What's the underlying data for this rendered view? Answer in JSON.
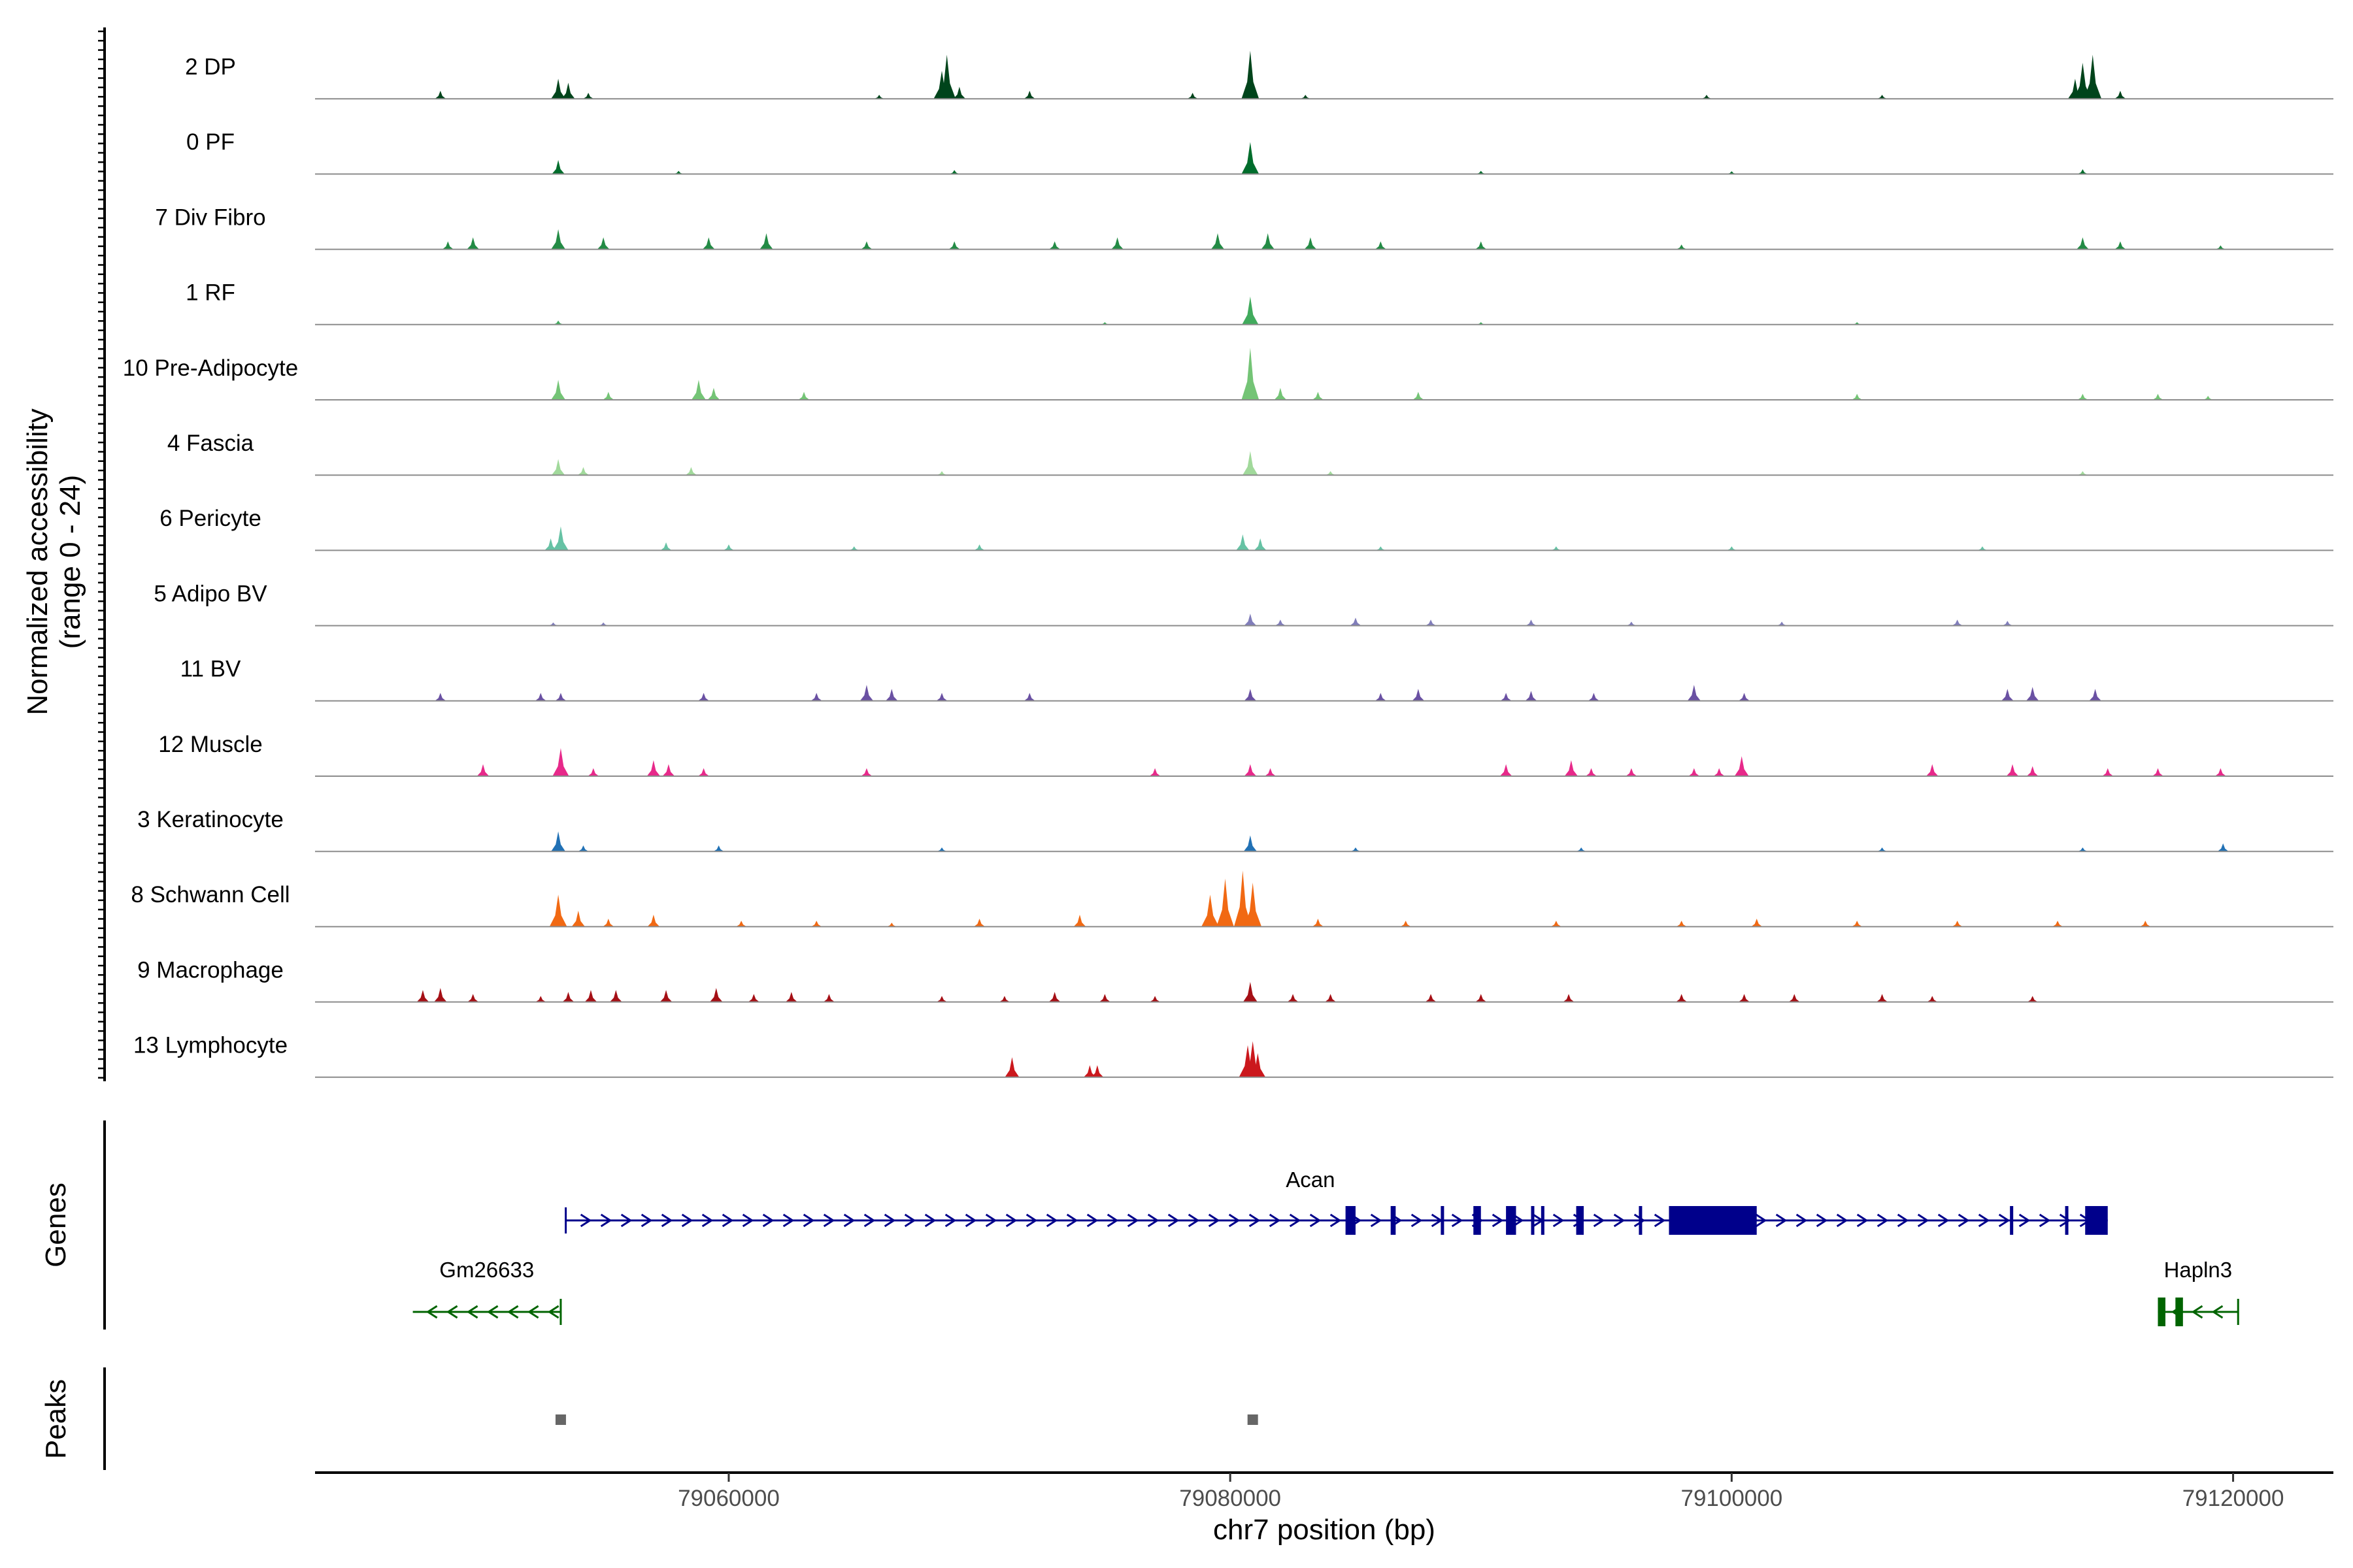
{
  "chart_data": {
    "type": "area",
    "chromosome": "chr7",
    "xlabel": "chr7 position (bp)",
    "ylabel": "Normalized accessibility",
    "ylabel_range": "(range 0 - 24)",
    "ylim": [
      0,
      24
    ],
    "xlim": [
      79043500,
      79124000
    ],
    "x_ticks": [
      79060000,
      79080000,
      79100000,
      79120000
    ],
    "x_tick_labels": [
      "79060000",
      "79080000",
      "79100000",
      "79120000"
    ],
    "tracks": [
      {
        "name": "2 DP",
        "color": "#00441b",
        "peaks": [
          [
            79048500,
            2
          ],
          [
            79053200,
            5
          ],
          [
            79053600,
            4
          ],
          [
            79054400,
            1.5
          ],
          [
            79066000,
            1
          ],
          [
            79068500,
            7
          ],
          [
            79068700,
            11
          ],
          [
            79069200,
            3
          ],
          [
            79072000,
            2
          ],
          [
            79080800,
            12
          ],
          [
            79078500,
            1.5
          ],
          [
            79083000,
            1
          ],
          [
            79099000,
            1
          ],
          [
            79106000,
            1
          ],
          [
            79114000,
            9
          ],
          [
            79114400,
            11
          ],
          [
            79113700,
            5
          ],
          [
            79115500,
            2
          ]
        ]
      },
      {
        "name": "0 PF",
        "color": "#006d2c",
        "peaks": [
          [
            79053200,
            3.5
          ],
          [
            79080800,
            8
          ],
          [
            79069000,
            1
          ],
          [
            79058000,
            0.8
          ],
          [
            79090000,
            0.8
          ],
          [
            79100000,
            0.7
          ],
          [
            79114000,
            1.2
          ]
        ]
      },
      {
        "name": "7 Div Fibro",
        "color": "#238b45",
        "peaks": [
          [
            79048800,
            2
          ],
          [
            79049800,
            3
          ],
          [
            79053200,
            5
          ],
          [
            79055000,
            3
          ],
          [
            79059200,
            3
          ],
          [
            79061500,
            4
          ],
          [
            79065500,
            2
          ],
          [
            79069000,
            2
          ],
          [
            79073000,
            2
          ],
          [
            79075500,
            3
          ],
          [
            79079500,
            4
          ],
          [
            79081500,
            4
          ],
          [
            79083200,
            3
          ],
          [
            79086000,
            2
          ],
          [
            79090000,
            2
          ],
          [
            79098000,
            1.2
          ],
          [
            79114000,
            3
          ],
          [
            79115500,
            2
          ],
          [
            79119500,
            1
          ]
        ]
      },
      {
        "name": "1 RF",
        "color": "#41ab5d",
        "peaks": [
          [
            79080800,
            7
          ],
          [
            79053200,
            1
          ],
          [
            79075000,
            0.6
          ],
          [
            79090000,
            0.6
          ],
          [
            79105000,
            0.6
          ]
        ]
      },
      {
        "name": "10 Pre-Adipocyte",
        "color": "#74c476",
        "peaks": [
          [
            79053200,
            5
          ],
          [
            79055200,
            2
          ],
          [
            79058800,
            5
          ],
          [
            79059400,
            3
          ],
          [
            79063000,
            2
          ],
          [
            79080800,
            13
          ],
          [
            79082000,
            3
          ],
          [
            79083500,
            2
          ],
          [
            79087500,
            2
          ],
          [
            79105000,
            1.5
          ],
          [
            79114000,
            1.5
          ],
          [
            79117000,
            1.5
          ],
          [
            79119000,
            1
          ]
        ]
      },
      {
        "name": "4 Fascia",
        "color": "#a1d99b",
        "peaks": [
          [
            79053200,
            4
          ],
          [
            79054200,
            2
          ],
          [
            79058500,
            2
          ],
          [
            79080800,
            6
          ],
          [
            79068500,
            1
          ],
          [
            79084000,
            1
          ],
          [
            79114000,
            1
          ]
        ]
      },
      {
        "name": "6 Pericyte",
        "color": "#66c2a4",
        "peaks": [
          [
            79053300,
            6
          ],
          [
            79052900,
            3
          ],
          [
            79057500,
            2
          ],
          [
            79060000,
            1.5
          ],
          [
            79065000,
            1
          ],
          [
            79070000,
            1.5
          ],
          [
            79080500,
            4
          ],
          [
            79081200,
            3
          ],
          [
            79086000,
            1
          ],
          [
            79093000,
            1
          ],
          [
            79100000,
            1
          ],
          [
            79110000,
            1
          ]
        ]
      },
      {
        "name": "5 Adipo BV",
        "color": "#807dba",
        "peaks": [
          [
            79080800,
            3
          ],
          [
            79082000,
            1.5
          ],
          [
            79085000,
            2
          ],
          [
            79088000,
            1.5
          ],
          [
            79092000,
            1.5
          ],
          [
            79096000,
            1
          ],
          [
            79102000,
            1
          ],
          [
            79109000,
            1.5
          ],
          [
            79111000,
            1.2
          ],
          [
            79053000,
            0.8
          ],
          [
            79055000,
            0.8
          ]
        ]
      },
      {
        "name": "11 BV",
        "color": "#6a51a3",
        "peaks": [
          [
            79048500,
            2
          ],
          [
            79052500,
            2
          ],
          [
            79053300,
            2
          ],
          [
            79059000,
            2
          ],
          [
            79063500,
            2
          ],
          [
            79065500,
            4
          ],
          [
            79066500,
            3
          ],
          [
            79068500,
            2
          ],
          [
            79072000,
            2
          ],
          [
            79080800,
            3
          ],
          [
            79086000,
            2
          ],
          [
            79087500,
            3
          ],
          [
            79091000,
            2
          ],
          [
            79092000,
            2.5
          ],
          [
            79094500,
            2
          ],
          [
            79098500,
            4
          ],
          [
            79100500,
            2
          ],
          [
            79111000,
            3
          ],
          [
            79112000,
            3.5
          ],
          [
            79114500,
            3
          ]
        ]
      },
      {
        "name": "12 Muscle",
        "color": "#e7298a",
        "peaks": [
          [
            79050200,
            3
          ],
          [
            79053300,
            7
          ],
          [
            79054600,
            2
          ],
          [
            79057000,
            4
          ],
          [
            79057600,
            3
          ],
          [
            79059000,
            2
          ],
          [
            79065500,
            2
          ],
          [
            79077000,
            2
          ],
          [
            79080800,
            3
          ],
          [
            79081600,
            2
          ],
          [
            79091000,
            3
          ],
          [
            79093600,
            4
          ],
          [
            79094400,
            2
          ],
          [
            79096000,
            2
          ],
          [
            79098500,
            2
          ],
          [
            79099500,
            2
          ],
          [
            79100400,
            5
          ],
          [
            79108000,
            3
          ],
          [
            79111200,
            3
          ],
          [
            79112000,
            2.5
          ],
          [
            79115000,
            2
          ],
          [
            79117000,
            2
          ],
          [
            79119500,
            2
          ]
        ]
      },
      {
        "name": "3 Keratinocyte",
        "color": "#2171b5",
        "peaks": [
          [
            79053200,
            5
          ],
          [
            79054200,
            1.5
          ],
          [
            79059600,
            1.5
          ],
          [
            79068500,
            1
          ],
          [
            79080800,
            4
          ],
          [
            79085000,
            1
          ],
          [
            79094000,
            1
          ],
          [
            79106000,
            1
          ],
          [
            79114000,
            1
          ],
          [
            79119600,
            2
          ]
        ]
      },
      {
        "name": "8 Schwann Cell",
        "color": "#f16913",
        "peaks": [
          [
            79053200,
            8
          ],
          [
            79054000,
            4
          ],
          [
            79055200,
            2
          ],
          [
            79057000,
            3
          ],
          [
            79060500,
            1.5
          ],
          [
            79063500,
            1.5
          ],
          [
            79066500,
            1
          ],
          [
            79070000,
            2
          ],
          [
            79074000,
            3
          ],
          [
            79079200,
            8
          ],
          [
            79079800,
            12
          ],
          [
            79080500,
            14
          ],
          [
            79080900,
            11
          ],
          [
            79083500,
            2
          ],
          [
            79087000,
            1.5
          ],
          [
            79093000,
            1.5
          ],
          [
            79098000,
            1.5
          ],
          [
            79101000,
            2
          ],
          [
            79105000,
            1.5
          ],
          [
            79109000,
            1.5
          ],
          [
            79113000,
            1.5
          ],
          [
            79116500,
            1.5
          ]
        ]
      },
      {
        "name": "9 Macrophage",
        "color": "#a50f15",
        "peaks": [
          [
            79047800,
            3
          ],
          [
            79048500,
            3.5
          ],
          [
            79049800,
            2
          ],
          [
            79052500,
            1.5
          ],
          [
            79053600,
            2.5
          ],
          [
            79054500,
            3
          ],
          [
            79055500,
            3
          ],
          [
            79057500,
            3
          ],
          [
            79059500,
            3.5
          ],
          [
            79061000,
            2
          ],
          [
            79062500,
            2.5
          ],
          [
            79064000,
            2
          ],
          [
            79068500,
            1.5
          ],
          [
            79071000,
            1.5
          ],
          [
            79073000,
            2.5
          ],
          [
            79075000,
            2
          ],
          [
            79077000,
            1.5
          ],
          [
            79080800,
            5
          ],
          [
            79082500,
            2
          ],
          [
            79084000,
            2
          ],
          [
            79088000,
            2
          ],
          [
            79090000,
            2
          ],
          [
            79093500,
            2
          ],
          [
            79098000,
            2
          ],
          [
            79100500,
            2
          ],
          [
            79102500,
            2
          ],
          [
            79106000,
            2
          ],
          [
            79108000,
            1.5
          ],
          [
            79112000,
            1.5
          ]
        ]
      },
      {
        "name": "13 Lymphocyte",
        "color": "#cb181d",
        "peaks": [
          [
            79071300,
            5
          ],
          [
            79074400,
            3
          ],
          [
            79074700,
            3
          ],
          [
            79080700,
            8
          ],
          [
            79080900,
            9
          ],
          [
            79081100,
            6
          ]
        ]
      }
    ],
    "genes": [
      {
        "name": "Acan",
        "strand": "+",
        "start": 79053500,
        "end": 79115000,
        "color": "#00008b",
        "exons": [
          [
            79084600,
            79085000
          ],
          [
            79086400,
            79086600
          ],
          [
            79088400,
            79088500
          ],
          [
            79089700,
            79090000
          ],
          [
            79091000,
            79091400
          ],
          [
            79092000,
            79092100
          ],
          [
            79092400,
            79092500
          ],
          [
            79093800,
            79094100
          ],
          [
            79096300,
            79096400
          ],
          [
            79097500,
            79101000
          ],
          [
            79111100,
            79111200
          ],
          [
            79113300,
            79113400
          ],
          [
            79114100,
            79115000
          ]
        ]
      },
      {
        "name": "Gm26633",
        "strand": "-",
        "start": 79047400,
        "end": 79053300,
        "color": "#006400",
        "exons": []
      },
      {
        "name": "Hapln3",
        "strand": "-",
        "start": 79117000,
        "end": 79120200,
        "color": "#006400",
        "exons": [
          [
            79117000,
            79117300
          ],
          [
            79117700,
            79118000
          ]
        ]
      }
    ],
    "peaks_track": [
      79053300,
      79080900
    ],
    "track_labels": {
      "genes": "Genes",
      "peaks": "Peaks"
    }
  }
}
